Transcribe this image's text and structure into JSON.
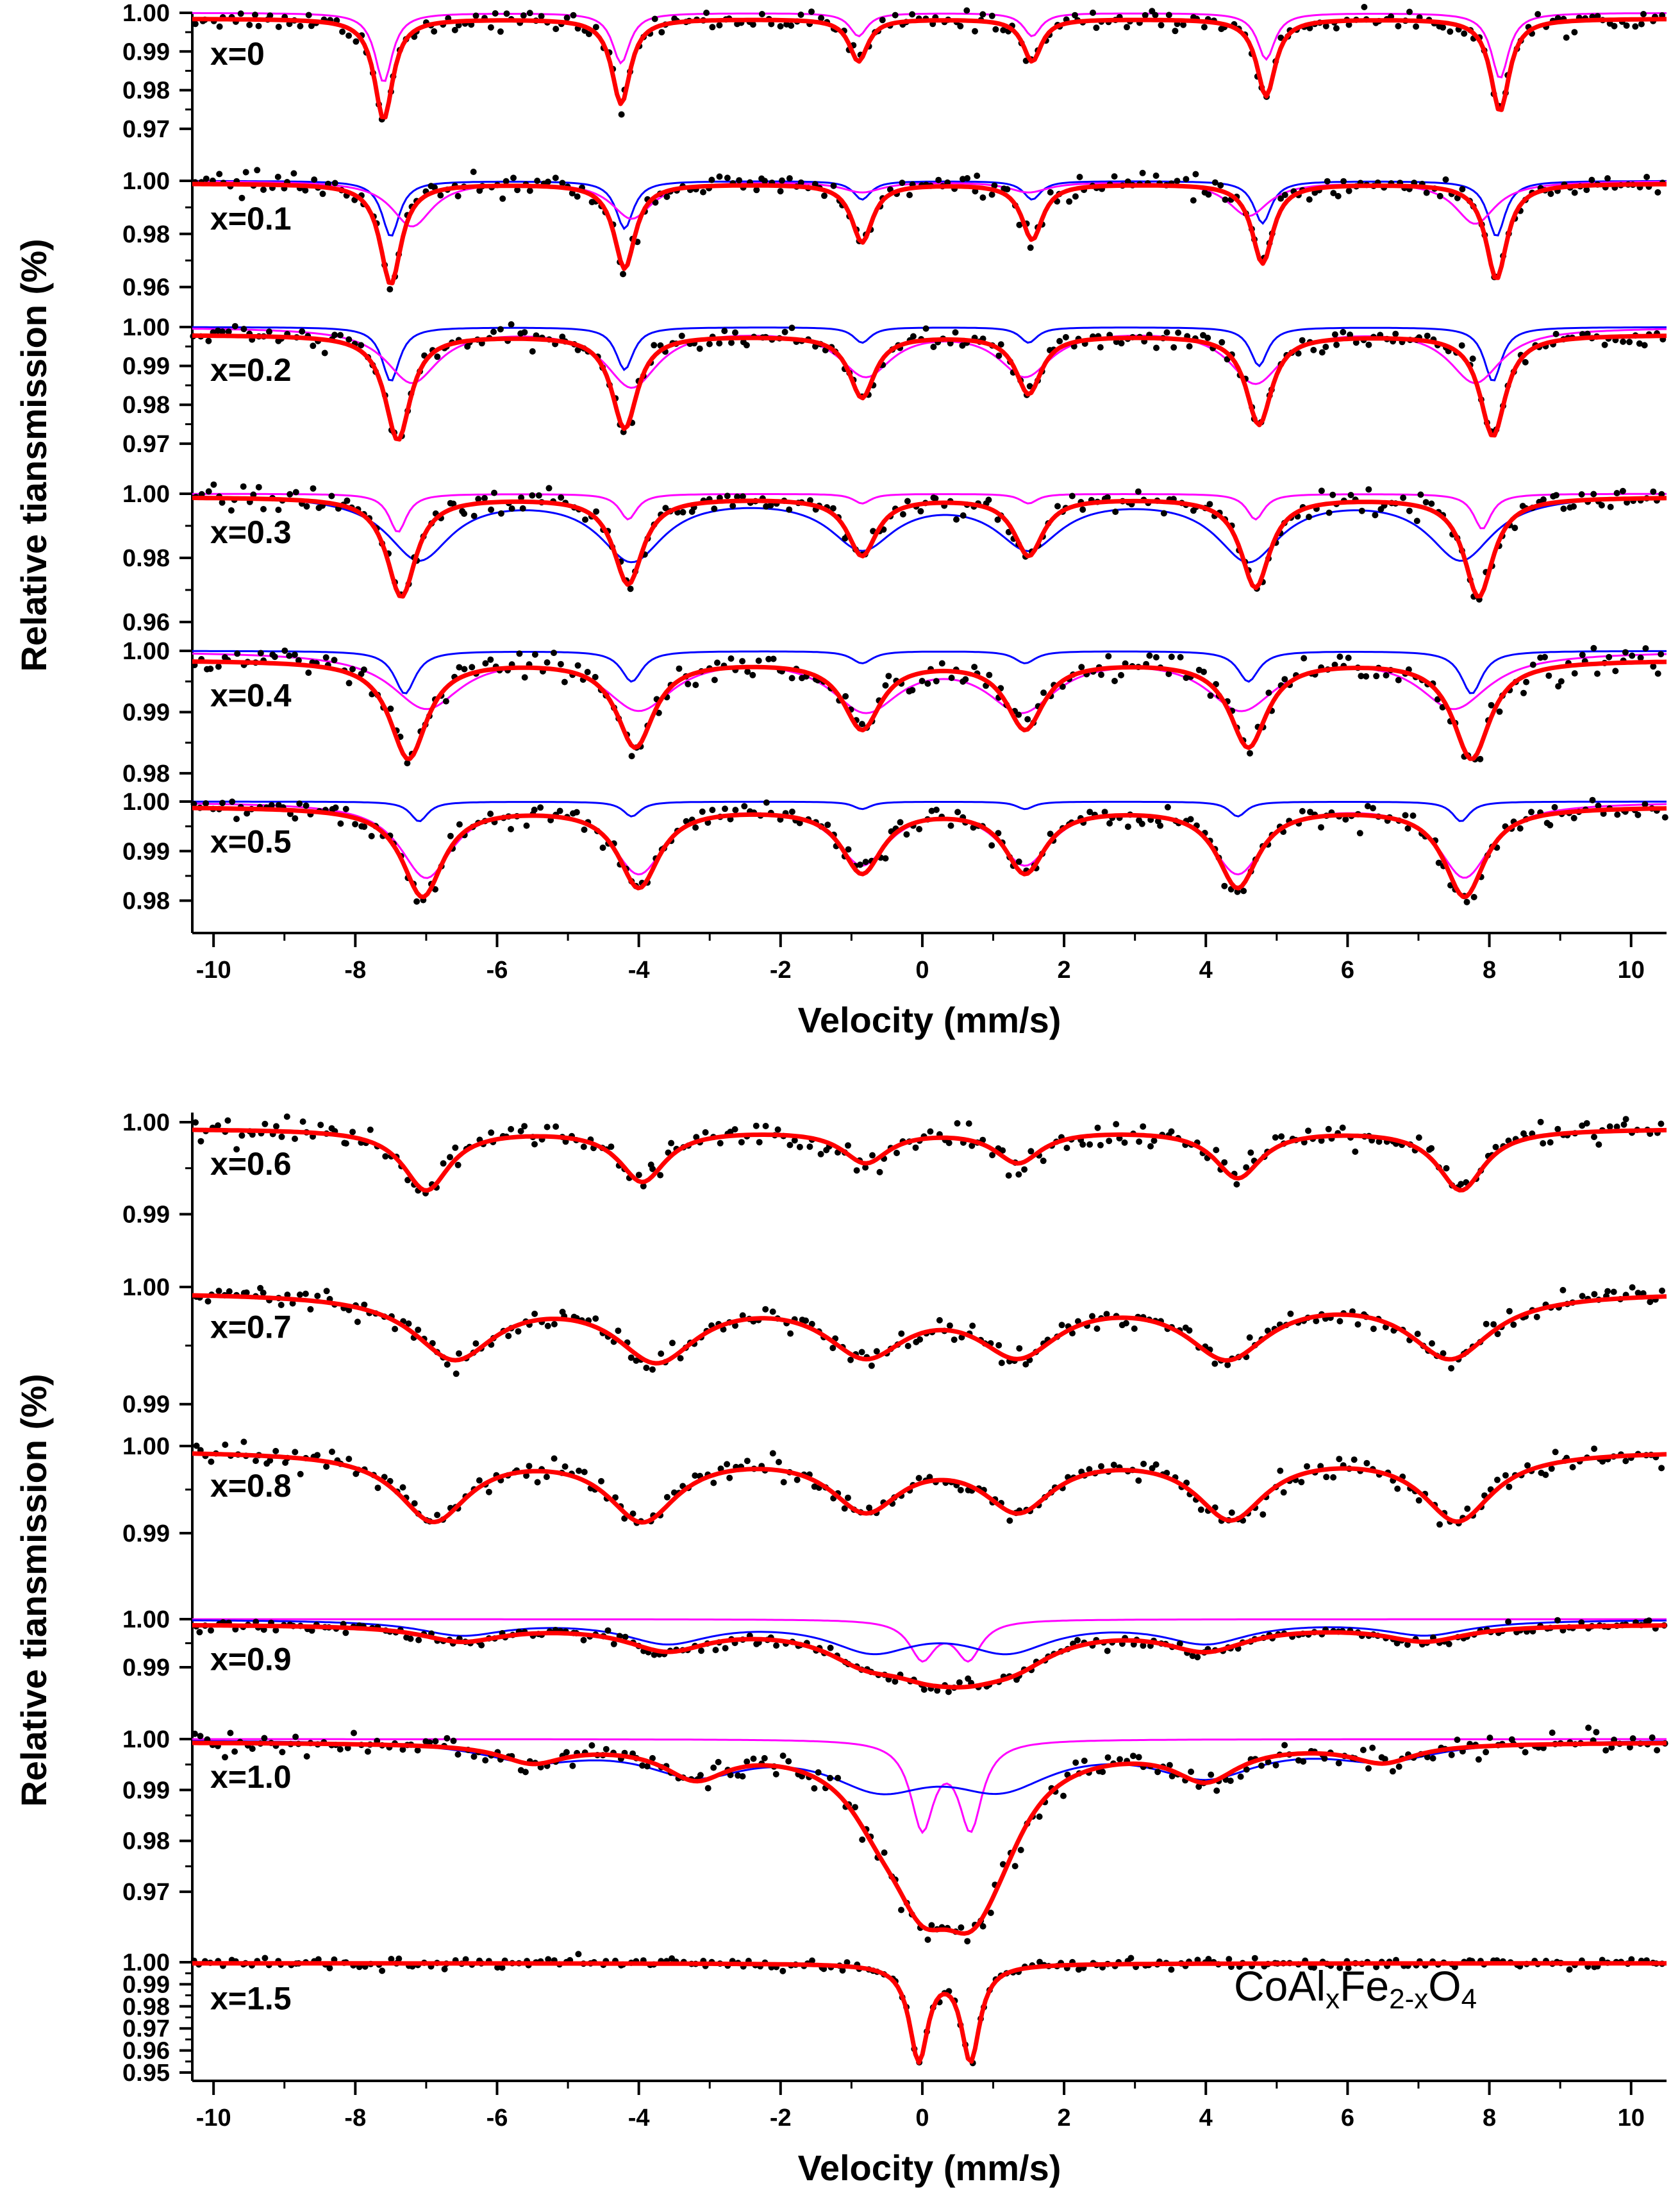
{
  "colors": {
    "fit": "#ff0000",
    "data_points": "#000000",
    "sub_magenta": "#ff00ff",
    "sub_blue": "#0000ff",
    "axis": "#000000"
  },
  "chart_data": [
    {
      "type": "line",
      "panel": "top",
      "title": "",
      "xlabel": "Velocity (mm/s)",
      "ylabel": "Relative tiansmission (%)",
      "xlim": [
        -10.3,
        10.5
      ],
      "x_ticks": [
        "-10",
        "-8",
        "-6",
        "-4",
        "-2",
        "0",
        "2",
        "4",
        "6",
        "8",
        "10"
      ],
      "tracks": [
        {
          "label": "x=0",
          "ylim": [
            0.966,
            1.0
          ],
          "y_ticks": [
            "1.00",
            "0.99",
            "0.98",
            "0.97"
          ],
          "y_tick_values": [
            1.0,
            0.99,
            0.98,
            0.97
          ],
          "fit": {
            "positions": [
              -7.6,
              -4.25,
              -0.9,
              1.55,
              4.85,
              8.15
            ],
            "depths": [
              0.026,
              0.022,
              0.011,
              0.011,
              0.02,
              0.024
            ],
            "hwhm": 0.16,
            "baseline": 0.9985
          },
          "subspectra": [
            {
              "color": "magenta",
              "positions": [
                -7.6,
                -4.25,
                -0.9,
                1.55,
                4.85,
                8.15
              ],
              "depths": [
                0.018,
                0.013,
                0.006,
                0.006,
                0.012,
                0.017
              ],
              "hwhm": 0.15
            }
          ],
          "noise": 0.0012
        },
        {
          "label": "x=0.1",
          "ylim": [
            0.957,
            1.0
          ],
          "y_ticks": [
            "1.00",
            "0.98",
            "0.96"
          ],
          "y_tick_values": [
            1.0,
            0.98,
            0.96
          ],
          "fit": {
            "positions": [
              -7.5,
              -4.2,
              -0.85,
              1.55,
              4.8,
              8.1
            ],
            "depths": [
              0.038,
              0.032,
              0.022,
              0.021,
              0.03,
              0.036
            ],
            "hwhm": 0.18,
            "baseline": 0.999
          },
          "subspectra": [
            {
              "color": "blue",
              "positions": [
                -7.5,
                -4.2,
                -0.85,
                1.55,
                4.8,
                8.1
              ],
              "depths": [
                0.021,
                0.018,
                0.007,
                0.007,
                0.016,
                0.021
              ],
              "hwhm": 0.15
            },
            {
              "color": "magenta",
              "positions": [
                -7.2,
                -4.1,
                -0.85,
                1.5,
                4.6,
                7.8
              ],
              "depths": [
                0.017,
                0.014,
                0.004,
                0.004,
                0.013,
                0.016
              ],
              "hwhm": 0.35
            }
          ],
          "noise": 0.002
        },
        {
          "label": "x=0.2",
          "ylim": [
            0.967,
            1.0
          ],
          "y_ticks": [
            "1.00",
            "0.99",
            "0.98",
            "0.97"
          ],
          "y_tick_values": [
            1.0,
            0.99,
            0.98,
            0.97
          ],
          "fit": {
            "positions": [
              -7.4,
              -4.2,
              -0.85,
              1.5,
              4.75,
              8.05
            ],
            "depths": [
              0.027,
              0.024,
              0.016,
              0.015,
              0.023,
              0.026
            ],
            "hwhm": 0.22,
            "baseline": 0.998
          },
          "subspectra": [
            {
              "color": "blue",
              "positions": [
                -7.5,
                -4.2,
                -0.85,
                1.5,
                4.75,
                8.05
              ],
              "depths": [
                0.014,
                0.011,
                0.004,
                0.004,
                0.01,
                0.014
              ],
              "hwhm": 0.15
            },
            {
              "color": "magenta",
              "positions": [
                -7.2,
                -4.1,
                -0.8,
                1.45,
                4.7,
                7.8
              ],
              "depths": [
                0.014,
                0.015,
                0.012,
                0.012,
                0.014,
                0.014
              ],
              "hwhm": 0.45
            }
          ],
          "noise": 0.0012
        },
        {
          "label": "x=0.3",
          "ylim": [
            0.957,
            1.0
          ],
          "y_ticks": [
            "1.00",
            "0.98",
            "0.96"
          ],
          "y_tick_values": [
            1.0,
            0.98,
            0.96
          ],
          "fit": {
            "positions": [
              -7.35,
              -4.15,
              -0.85,
              1.5,
              4.7,
              7.85
            ],
            "depths": [
              0.031,
              0.027,
              0.018,
              0.018,
              0.028,
              0.031
            ],
            "hwhm": 0.25,
            "baseline": 0.999
          },
          "subspectra": [
            {
              "color": "magenta",
              "positions": [
                -7.4,
                -4.15,
                -0.85,
                1.5,
                4.7,
                7.9
              ],
              "depths": [
                0.012,
                0.008,
                0.003,
                0.003,
                0.008,
                0.011
              ],
              "hwhm": 0.15
            },
            {
              "color": "blue",
              "positions": [
                -7.1,
                -4.1,
                -0.85,
                1.5,
                4.6,
                7.6
              ],
              "depths": [
                0.02,
                0.02,
                0.016,
                0.016,
                0.02,
                0.02
              ],
              "hwhm": 0.55
            }
          ],
          "noise": 0.0018
        },
        {
          "label": "x=0.4",
          "ylim": [
            0.978,
            1.0
          ],
          "y_ticks": [
            "1.00",
            "0.99",
            "0.98"
          ],
          "y_tick_values": [
            1.0,
            0.99,
            0.98
          ],
          "fit": {
            "positions": [
              -7.25,
              -4.05,
              -0.85,
              1.45,
              4.6,
              7.75
            ],
            "depths": [
              0.016,
              0.014,
              0.011,
              0.011,
              0.014,
              0.016
            ],
            "hwhm": 0.32,
            "baseline": 0.9985
          },
          "subspectra": [
            {
              "color": "blue",
              "positions": [
                -7.3,
                -4.1,
                -0.85,
                1.45,
                4.6,
                7.75
              ],
              "depths": [
                0.007,
                0.005,
                0.002,
                0.002,
                0.005,
                0.007
              ],
              "hwhm": 0.18
            },
            {
              "color": "magenta",
              "positions": [
                -7.0,
                -4.0,
                -0.8,
                1.4,
                4.5,
                7.5
              ],
              "depths": [
                0.009,
                0.009,
                0.009,
                0.009,
                0.009,
                0.009
              ],
              "hwhm": 0.6
            }
          ],
          "noise": 0.0012
        },
        {
          "label": "x=0.5",
          "ylim": [
            0.978,
            1.0
          ],
          "y_ticks": [
            "1.00",
            "0.99",
            "0.98"
          ],
          "y_tick_values": [
            1.0,
            0.99,
            0.98
          ],
          "fit": {
            "positions": [
              -7.05,
              -4.0,
              -0.85,
              1.45,
              4.45,
              7.65
            ],
            "depths": [
              0.018,
              0.016,
              0.013,
              0.013,
              0.016,
              0.018
            ],
            "hwhm": 0.35,
            "baseline": 0.999
          },
          "subspectra": [
            {
              "color": "blue",
              "positions": [
                -7.1,
                -4.1,
                -0.85,
                1.45,
                4.45,
                7.6
              ],
              "depths": [
                0.004,
                0.003,
                0.0015,
                0.0015,
                0.003,
                0.004
              ],
              "hwhm": 0.15
            },
            {
              "color": "magenta",
              "positions": [
                -7.0,
                -4.0,
                -0.85,
                1.45,
                4.45,
                7.65
              ],
              "depths": [
                0.015,
                0.014,
                0.012,
                0.012,
                0.014,
                0.015
              ],
              "hwhm": 0.45
            }
          ],
          "noise": 0.0011
        }
      ]
    },
    {
      "type": "line",
      "panel": "bottom",
      "title": "",
      "xlabel": "Velocity (mm/s)",
      "ylabel": "Relative tiansmission (%)",
      "xlim": [
        -10.3,
        10.5
      ],
      "x_ticks": [
        "-10",
        "-8",
        "-6",
        "-4",
        "-2",
        "0",
        "2",
        "4",
        "6",
        "8",
        "10"
      ],
      "annotation": {
        "base1": "CoAl",
        "sub1": "x",
        "base2": "Fe",
        "sub2": "2-x",
        "base3": "O",
        "sub3": "4"
      },
      "tracks": [
        {
          "label": "x=0.6",
          "ylim": [
            0.9885,
            1.0
          ],
          "y_ticks": [
            "1.00",
            "0.99"
          ],
          "y_tick_values": [
            1.0,
            0.99
          ],
          "fit": {
            "positions": [
              -7.0,
              -3.95,
              -0.8,
              1.35,
              4.45,
              7.6
            ],
            "depths": [
              0.0066,
              0.0056,
              0.0035,
              0.0035,
              0.0052,
              0.0066
            ],
            "hwhm": 0.4,
            "baseline": 0.9993
          },
          "subspectra": [],
          "noise": 0.0007
        },
        {
          "label": "x=0.7",
          "ylim": [
            0.989,
            1.0
          ],
          "y_ticks": [
            "1.00",
            "0.99"
          ],
          "y_tick_values": [
            1.0,
            0.99
          ],
          "fit": {
            "positions": [
              -6.6,
              -3.75,
              -0.8,
              1.35,
              4.3,
              7.45
            ],
            "depths": [
              0.0054,
              0.0054,
              0.0048,
              0.0048,
              0.0052,
              0.0054
            ],
            "hwhm": 0.7,
            "baseline": 0.9996
          },
          "subspectra": [],
          "noise": 0.0005
        },
        {
          "label": "x=0.8",
          "ylim": [
            0.988,
            1.0
          ],
          "y_ticks": [
            "1.00",
            "0.99"
          ],
          "y_tick_values": [
            1.0,
            0.99
          ],
          "fit": {
            "positions": [
              -6.9,
              -3.95,
              -0.8,
              1.35,
              4.35,
              7.55
            ],
            "depths": [
              0.0078,
              0.0076,
              0.0063,
              0.0063,
              0.0074,
              0.0078
            ],
            "hwhm": 0.6,
            "baseline": 0.9995
          },
          "subspectra": [],
          "noise": 0.0006
        },
        {
          "label": "x=0.9",
          "ylim": [
            0.986,
            1.0
          ],
          "y_ticks": [
            "1.00",
            "0.99"
          ],
          "y_tick_values": [
            1.0,
            0.99
          ],
          "fit": {
            "positions": [
              -6.5,
              -3.6,
              -0.8,
              1.3,
              4.0,
              7.1,
              0.05,
              0.65
            ],
            "depths": [
              0.0032,
              0.0048,
              0.0055,
              0.0055,
              0.0048,
              0.0032,
              0.0055,
              0.0055
            ],
            "hwhm": 0.7,
            "baseline": 0.999
          },
          "subspectra": [
            {
              "color": "magenta",
              "positions": [
                0.0,
                0.65
              ],
              "depths": [
                0.008,
                0.008
              ],
              "hwhm": 0.22
            },
            {
              "color": "blue",
              "positions": [
                -6.5,
                -3.6,
                -0.7,
                1.2,
                4.0,
                7.1
              ],
              "depths": [
                0.003,
                0.0045,
                0.006,
                0.006,
                0.0045,
                0.003
              ],
              "hwhm": 0.75
            }
          ],
          "noise": 0.0006
        },
        {
          "label": "x=1.0",
          "ylim": [
            0.9685,
            1.0
          ],
          "y_ticks": [
            "1.00",
            "0.99",
            "0.98",
            "0.97"
          ],
          "y_tick_values": [
            1.0,
            0.99,
            0.98,
            0.97
          ],
          "fit": {
            "positions": [
              -5.5,
              -3.2,
              -0.6,
              1.1,
              4.0,
              6.5,
              0.0,
              0.68
            ],
            "depths": [
              0.0035,
              0.006,
              0.008,
              0.008,
              0.0065,
              0.0035,
              0.022,
              0.022
            ],
            "hwhm": 0.55,
            "baseline": 0.9995
          },
          "subspectra": [
            {
              "color": "magenta",
              "positions": [
                0.0,
                0.68
              ],
              "depths": [
                0.017,
                0.017
              ],
              "hwhm": 0.2
            },
            {
              "color": "blue",
              "positions": [
                -5.5,
                -3.2,
                -0.6,
                1.1,
                4.0,
                6.5
              ],
              "depths": [
                0.0035,
                0.006,
                0.008,
                0.008,
                0.0065,
                0.0035
              ],
              "hwhm": 0.9
            }
          ],
          "noise": 0.0012
        },
        {
          "label": "x=1.5",
          "ylim": [
            0.95,
            1.0
          ],
          "y_ticks": [
            "1.00",
            "0.99",
            "0.98",
            "0.97",
            "0.96",
            "0.95"
          ],
          "y_tick_values": [
            1.0,
            0.99,
            0.98,
            0.97,
            0.96,
            0.95
          ],
          "fit": {
            "positions": [
              -0.05,
              0.68
            ],
            "depths": [
              0.043,
              0.043
            ],
            "hwhm": 0.16,
            "baseline": 0.9995
          },
          "subspectra": [],
          "noise": 0.0012
        }
      ]
    }
  ]
}
